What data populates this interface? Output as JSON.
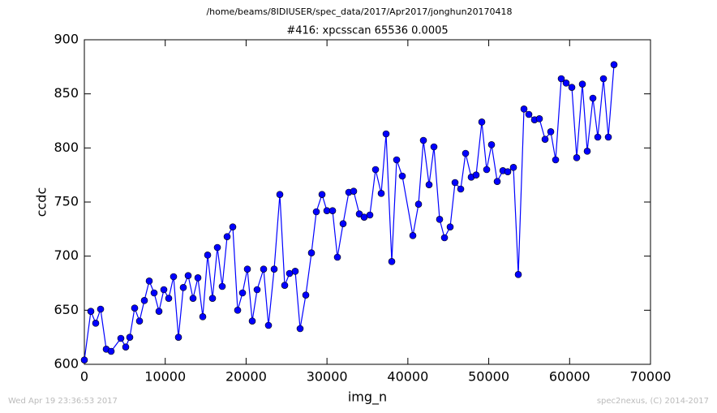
{
  "chart_data": {
    "type": "line",
    "suptitle": "/home/beams/8IDIUSER/spec_data/2017/Apr2017/jonghun20170418",
    "title": "#416: xpcsscan 65536 0.0005",
    "xlabel": "img_n",
    "ylabel": "ccdc",
    "x": [
      0,
      802,
      1404,
      2006,
      2708,
      3310,
      4513,
      5115,
      5616,
      6218,
      6820,
      7421,
      8023,
      8625,
      9227,
      9828,
      10430,
      11032,
      11634,
      12235,
      12837,
      13439,
      14041,
      14642,
      15244,
      15846,
      16448,
      17049,
      17651,
      18353,
      18955,
      19557,
      20158,
      20760,
      21362,
      22164,
      22766,
      23468,
      24170,
      24772,
      25373,
      26075,
      26677,
      27379,
      28081,
      28683,
      29385,
      29987,
      30689,
      31290,
      31993,
      32695,
      33296,
      33998,
      34600,
      35302,
      36004,
      36706,
      37308,
      38010,
      38612,
      39314,
      40617,
      41319,
      41921,
      42623,
      43225,
      43927,
      44529,
      45231,
      45833,
      46535,
      47136,
      47838,
      48440,
      49142,
      49744,
      50346,
      51048,
      51750,
      52351,
      53053,
      53655,
      54357,
      54959,
      55661,
      56263,
      56965,
      57667,
      58269,
      58970,
      59572,
      60274,
      60876,
      61578,
      62180,
      62882,
      63484,
      64186,
      64787,
      65489
    ],
    "series": [
      {
        "color": "#0000ff",
        "marker": "circle",
        "values": [
          604,
          649,
          638,
          651,
          614,
          612,
          624,
          616,
          625,
          652,
          640,
          659,
          677,
          666,
          649,
          669,
          661,
          681,
          625,
          671,
          682,
          661,
          680,
          644,
          701,
          661,
          708,
          672,
          718,
          727,
          650,
          666,
          688,
          640,
          669,
          688,
          636,
          688,
          757,
          673,
          684,
          686,
          633,
          664,
          703,
          741,
          757,
          742,
          742,
          699,
          730,
          759,
          760,
          739,
          736,
          738,
          780,
          758,
          813,
          695,
          789,
          774,
          719,
          748,
          807,
          766,
          801,
          734,
          717,
          727,
          768,
          762,
          795,
          773,
          775,
          824,
          780,
          803,
          769,
          779,
          778,
          782,
          683,
          836,
          831,
          826,
          827,
          808,
          815,
          789,
          864,
          860,
          856,
          791,
          859,
          797,
          846,
          810,
          864,
          810,
          877
        ]
      }
    ],
    "xlim": [
      0,
      70000
    ],
    "ylim": [
      600,
      900
    ],
    "xticks": [
      0,
      10000,
      20000,
      30000,
      40000,
      50000,
      60000,
      70000
    ],
    "yticks": [
      600,
      650,
      700,
      750,
      800,
      850,
      900
    ]
  },
  "footer": {
    "left": "Wed Apr 19 23:36:53 2017",
    "right": "spec2nexus, (C) 2014-2017"
  }
}
